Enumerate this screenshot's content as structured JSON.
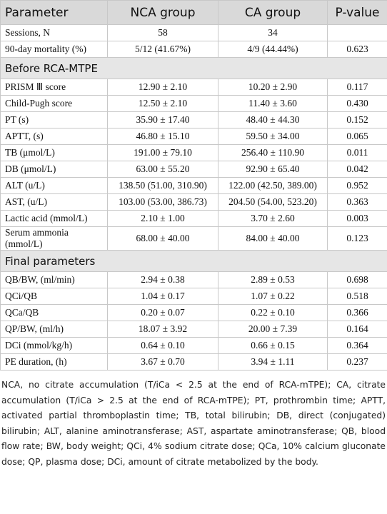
{
  "table": {
    "header": [
      "Parameter",
      "NCA group",
      "CA group",
      "P-value"
    ],
    "top_rows": [
      [
        "Sessions, N",
        "58",
        "34"
      ],
      [
        "90-day mortality (%)",
        "5/12 (41.67%)",
        "4/9 (44.44%)",
        "0.623"
      ]
    ],
    "sections": [
      {
        "title": "Before RCA-MTPE",
        "rows": [
          [
            "PRISM Ⅲ score",
            "12.90 ± 2.10",
            "10.20 ± 2.90",
            "0.117"
          ],
          [
            "Child-Pugh score",
            "12.50 ± 2.10",
            "11.40 ± 3.60",
            "0.430"
          ],
          [
            "PT (s)",
            "35.90 ± 17.40",
            "48.40 ± 44.30",
            "0.152"
          ],
          [
            "APTT, (s)",
            "46.80 ± 15.10",
            "59.50 ± 34.00",
            "0.065"
          ],
          [
            "TB (μmol/L)",
            "191.00 ± 79.10",
            "256.40 ± 110.90",
            "0.011"
          ],
          [
            "DB (μmol/L)",
            "63.00 ± 55.20",
            "92.90 ± 65.40",
            "0.042"
          ],
          [
            "ALT (u/L)",
            "138.50 (51.00, 310.90)",
            "122.00 (42.50, 389.00)",
            "0.952"
          ],
          [
            "AST, (u/L)",
            "103.00 (53.00, 386.73)",
            "204.50 (54.00, 523.20)",
            "0.363"
          ],
          [
            "Lactic acid (mmol/L)",
            "2.10 ± 1.00",
            "3.70 ± 2.60",
            "0.003"
          ],
          [
            "Serum ammonia (mmol/L)",
            "68.00 ± 40.00",
            "84.00 ± 40.00",
            "0.123"
          ]
        ]
      },
      {
        "title": "Final parameters",
        "rows": [
          [
            "QB/BW, (ml/min)",
            "2.94 ± 0.38",
            "2.89 ± 0.53",
            "0.698"
          ],
          [
            "QCi/QB",
            "1.04 ± 0.17",
            "1.07 ± 0.22",
            "0.518"
          ],
          [
            "QCa/QB",
            "0.20 ± 0.07",
            "0.22 ± 0.10",
            "0.366"
          ],
          [
            "QP/BW, (ml/h)",
            "18.07 ± 3.92",
            "20.00 ± 7.39",
            "0.164"
          ],
          [
            "DCi (mmol/kg/h)",
            "0.64 ± 0.10",
            "0.66 ± 0.15",
            "0.364"
          ],
          [
            "PE duration, (h)",
            "3.67 ± 0.70",
            "3.94 ± 1.11",
            "0.237"
          ]
        ]
      }
    ],
    "footnote": "NCA, no citrate accumulation (T/iCa < 2.5 at the end of RCA-mTPE); CA, citrate accumulation (T/iCa > 2.5 at the end of RCA-mTPE); PT, prothrombin time; APTT, activated partial thromboplastin time; TB, total bilirubin; DB, direct (conjugated) bilirubin; ALT, alanine aminotransferase; AST, aspartate aminotransferase; QB, blood flow rate; BW, body weight; QCi, 4% sodium citrate dose; QCa, 10% calcium gluconate dose; QP, plasma dose; DCi, amount of citrate metabolized by the body."
  }
}
